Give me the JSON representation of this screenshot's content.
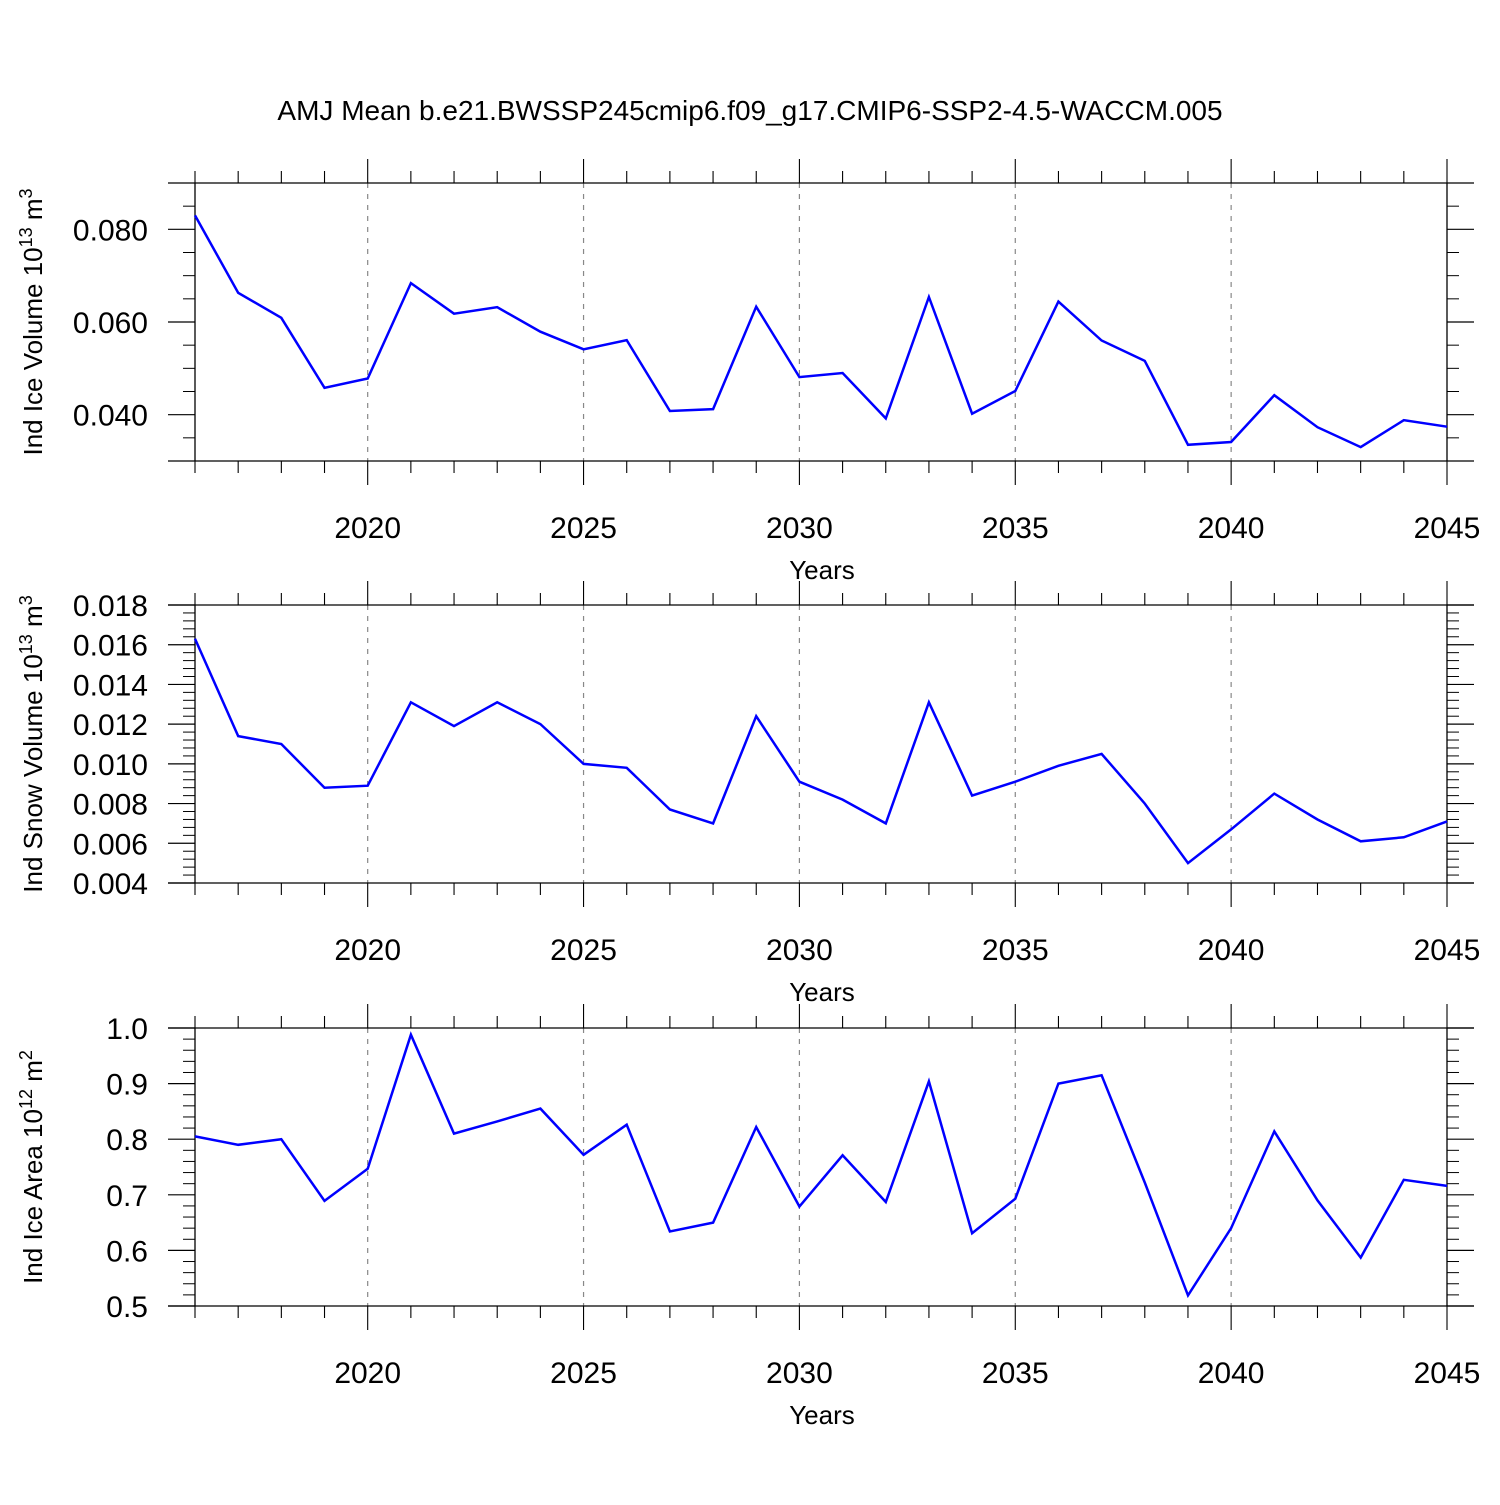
{
  "title": "AMJ Mean b.e21.BWSSP245cmip6.f09_g17.CMIP6-SSP2-4.5-WACCM.005",
  "line_color": "#0000ff",
  "chart_data": [
    {
      "type": "line",
      "ylabel_main": "Ind Ice Volume 10",
      "ylabel_exp1": "13",
      "ylabel_mid": " m",
      "ylabel_exp2": "3",
      "xlabel": "Years",
      "xlim": [
        2016,
        2045
      ],
      "ylim": [
        0.03,
        0.09
      ],
      "yticks": [
        0.04,
        0.06,
        0.08
      ],
      "ytick_labels": [
        "0.040",
        "0.060",
        "0.080"
      ],
      "yminor_step": 0.005,
      "xticks": [
        2020,
        2025,
        2030,
        2035,
        2040,
        2045
      ],
      "xtick_labels": [
        "2020",
        "2025",
        "2030",
        "2035",
        "2040",
        "2045"
      ],
      "x": [
        2016,
        2017,
        2018,
        2019,
        2020,
        2021,
        2022,
        2023,
        2024,
        2025,
        2026,
        2027,
        2028,
        2029,
        2030,
        2031,
        2032,
        2033,
        2034,
        2035,
        2036,
        2037,
        2038,
        2039,
        2040,
        2041,
        2042,
        2043,
        2044,
        2045
      ],
      "values": [
        0.083,
        0.0663,
        0.0609,
        0.0458,
        0.0478,
        0.0684,
        0.0618,
        0.0632,
        0.0579,
        0.0541,
        0.0561,
        0.0408,
        0.0412,
        0.0633,
        0.0481,
        0.049,
        0.0392,
        0.0654,
        0.0402,
        0.0451,
        0.0644,
        0.056,
        0.0516,
        0.0335,
        0.0341,
        0.0442,
        0.0373,
        0.033,
        0.0388,
        0.0374
      ]
    },
    {
      "type": "line",
      "ylabel_main": "Ind Snow Volume 10",
      "ylabel_exp1": "13",
      "ylabel_mid": " m",
      "ylabel_exp2": "3",
      "xlabel": "Years",
      "xlim": [
        2016,
        2045
      ],
      "ylim": [
        0.004,
        0.018
      ],
      "yticks": [
        0.004,
        0.006,
        0.008,
        0.01,
        0.012,
        0.014,
        0.016,
        0.018
      ],
      "ytick_labels": [
        "0.004",
        "0.006",
        "0.008",
        "0.010",
        "0.012",
        "0.014",
        "0.016",
        "0.018"
      ],
      "yminor_step": 0.0004,
      "xticks": [
        2020,
        2025,
        2030,
        2035,
        2040,
        2045
      ],
      "xtick_labels": [
        "2020",
        "2025",
        "2030",
        "2035",
        "2040",
        "2045"
      ],
      "x": [
        2016,
        2017,
        2018,
        2019,
        2020,
        2021,
        2022,
        2023,
        2024,
        2025,
        2026,
        2027,
        2028,
        2029,
        2030,
        2031,
        2032,
        2033,
        2034,
        2035,
        2036,
        2037,
        2038,
        2039,
        2040,
        2041,
        2042,
        2043,
        2044,
        2045
      ],
      "values": [
        0.0163,
        0.0114,
        0.011,
        0.0088,
        0.0089,
        0.0131,
        0.0119,
        0.0131,
        0.012,
        0.01,
        0.0098,
        0.0077,
        0.007,
        0.0124,
        0.0091,
        0.0082,
        0.007,
        0.0131,
        0.0084,
        0.0091,
        0.0099,
        0.0105,
        0.008,
        0.005,
        0.0067,
        0.0085,
        0.0072,
        0.0061,
        0.0063,
        0.0071
      ]
    },
    {
      "type": "line",
      "ylabel_main": "Ind Ice Area 10",
      "ylabel_exp1": "12",
      "ylabel_mid": " m",
      "ylabel_exp2": "2",
      "xlabel": "Years",
      "xlim": [
        2016,
        2045
      ],
      "ylim": [
        0.5,
        1.0
      ],
      "yticks": [
        0.5,
        0.6,
        0.7,
        0.8,
        0.9,
        1.0
      ],
      "ytick_labels": [
        "0.5",
        "0.6",
        "0.7",
        "0.8",
        "0.9",
        "1.0"
      ],
      "yminor_step": 0.02,
      "xticks": [
        2020,
        2025,
        2030,
        2035,
        2040,
        2045
      ],
      "xtick_labels": [
        "2020",
        "2025",
        "2030",
        "2035",
        "2040",
        "2045"
      ],
      "x": [
        2016,
        2017,
        2018,
        2019,
        2020,
        2021,
        2022,
        2023,
        2024,
        2025,
        2026,
        2027,
        2028,
        2029,
        2030,
        2031,
        2032,
        2033,
        2034,
        2035,
        2036,
        2037,
        2038,
        2039,
        2040,
        2041,
        2042,
        2043,
        2044,
        2045
      ],
      "values": [
        0.805,
        0.79,
        0.8,
        0.689,
        0.747,
        0.988,
        0.81,
        0.832,
        0.855,
        0.772,
        0.826,
        0.634,
        0.65,
        0.822,
        0.679,
        0.771,
        0.687,
        0.904,
        0.631,
        0.693,
        0.9,
        0.915,
        0.722,
        0.519,
        0.64,
        0.814,
        0.69,
        0.587,
        0.727,
        0.716
      ]
    }
  ]
}
